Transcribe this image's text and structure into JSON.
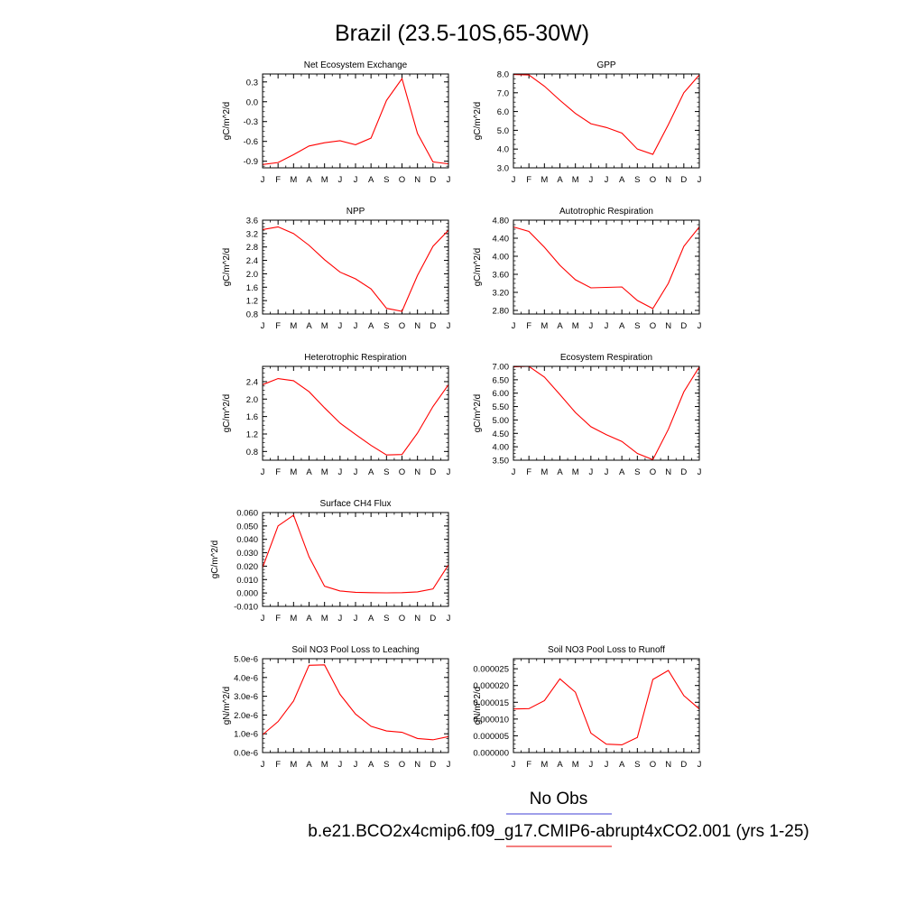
{
  "figure": {
    "title": "Brazil (23.5-10S,65-30W)",
    "legend": {
      "obs_label": "No Obs",
      "obs_color": "#6666dd",
      "case_label": "b.e21.BCO2x4cmip6.f09_g17.CMIP6-abrupt4xCO2.001 (yrs 1-25)",
      "case_color": "#ee3333"
    }
  },
  "chart_data": [
    {
      "type": "line",
      "title": "Net Ecosystem Exchange",
      "ylabel": "gC/m^2/d",
      "categories": [
        "J",
        "F",
        "M",
        "A",
        "M",
        "J",
        "J",
        "A",
        "S",
        "O",
        "N",
        "D",
        "J"
      ],
      "ylim": [
        -1.0,
        0.42
      ],
      "yticks": [
        -0.9,
        -0.6,
        -0.3,
        0.0,
        0.3
      ],
      "ytick_labels": [
        "-0.9",
        "-0.6",
        "-0.3",
        "0.0",
        "0.3"
      ],
      "series": [
        {
          "color": "#ff0000",
          "values": [
            -0.95,
            -0.92,
            -0.8,
            -0.67,
            -0.62,
            -0.59,
            -0.65,
            -0.55,
            0.02,
            0.35,
            -0.48,
            -0.91,
            -0.94
          ]
        }
      ]
    },
    {
      "type": "line",
      "title": "GPP",
      "ylabel": "gC/m^2/d",
      "categories": [
        "J",
        "F",
        "M",
        "A",
        "M",
        "J",
        "J",
        "A",
        "S",
        "O",
        "N",
        "D",
        "J"
      ],
      "ylim": [
        3.0,
        8.0
      ],
      "yticks": [
        3.0,
        4.0,
        5.0,
        6.0,
        7.0,
        8.0
      ],
      "ytick_labels": [
        "3.0",
        "4.0",
        "5.0",
        "6.0",
        "7.0",
        "8.0"
      ],
      "series": [
        {
          "color": "#ff0000",
          "values": [
            7.97,
            7.95,
            7.35,
            6.6,
            5.9,
            5.35,
            5.15,
            4.85,
            4.0,
            3.72,
            5.3,
            7.0,
            7.95
          ]
        }
      ]
    },
    {
      "type": "line",
      "title": "NPP",
      "ylabel": "gC/m^2/d",
      "categories": [
        "J",
        "F",
        "M",
        "A",
        "M",
        "J",
        "J",
        "A",
        "S",
        "O",
        "N",
        "D",
        "J"
      ],
      "ylim": [
        0.8,
        3.6
      ],
      "yticks": [
        0.8,
        1.2,
        1.6,
        2.0,
        2.4,
        2.8,
        3.2,
        3.6
      ],
      "ytick_labels": [
        "0.8",
        "1.2",
        "1.6",
        "2.0",
        "2.4",
        "2.8",
        "3.2",
        "3.6"
      ],
      "series": [
        {
          "color": "#ff0000",
          "values": [
            3.32,
            3.4,
            3.2,
            2.85,
            2.42,
            2.05,
            1.85,
            1.55,
            0.97,
            0.88,
            1.95,
            2.82,
            3.3
          ]
        }
      ]
    },
    {
      "type": "line",
      "title": "Autotrophic Respiration",
      "ylabel": "gC/m^2/d",
      "categories": [
        "J",
        "F",
        "M",
        "A",
        "M",
        "J",
        "J",
        "A",
        "S",
        "O",
        "N",
        "D",
        "J"
      ],
      "ylim": [
        2.72,
        4.8
      ],
      "yticks": [
        2.8,
        3.2,
        3.6,
        4.0,
        4.4,
        4.8
      ],
      "ytick_labels": [
        "2.80",
        "3.20",
        "3.60",
        "4.00",
        "4.40",
        "4.80"
      ],
      "series": [
        {
          "color": "#ff0000",
          "values": [
            4.65,
            4.55,
            4.2,
            3.8,
            3.48,
            3.3,
            3.31,
            3.32,
            3.02,
            2.84,
            3.4,
            4.22,
            4.65
          ]
        }
      ]
    },
    {
      "type": "line",
      "title": "Heterotrophic Respiration",
      "ylabel": "gC/m^2/d",
      "categories": [
        "J",
        "F",
        "M",
        "A",
        "M",
        "J",
        "J",
        "A",
        "S",
        "O",
        "N",
        "D",
        "J"
      ],
      "ylim": [
        0.6,
        2.75
      ],
      "yticks": [
        0.8,
        1.2,
        1.6,
        2.0,
        2.4
      ],
      "ytick_labels": [
        "0.8",
        "1.2",
        "1.6",
        "2.0",
        "2.4"
      ],
      "series": [
        {
          "color": "#ff0000",
          "values": [
            2.33,
            2.47,
            2.42,
            2.17,
            1.8,
            1.45,
            1.19,
            0.94,
            0.72,
            0.73,
            1.22,
            1.83,
            2.33
          ]
        }
      ]
    },
    {
      "type": "line",
      "title": "Ecosystem Respiration",
      "ylabel": "gC/m^2/d",
      "categories": [
        "J",
        "F",
        "M",
        "A",
        "M",
        "J",
        "J",
        "A",
        "S",
        "O",
        "N",
        "D",
        "J"
      ],
      "ylim": [
        3.5,
        7.0
      ],
      "yticks": [
        3.5,
        4.0,
        4.5,
        5.0,
        5.5,
        6.0,
        6.5,
        7.0
      ],
      "ytick_labels": [
        "3.50",
        "4.00",
        "4.50",
        "5.00",
        "5.50",
        "6.00",
        "6.50",
        "7.00"
      ],
      "series": [
        {
          "color": "#ff0000",
          "values": [
            6.98,
            7.0,
            6.6,
            5.95,
            5.28,
            4.75,
            4.45,
            4.2,
            3.75,
            3.52,
            4.65,
            6.05,
            6.98
          ]
        }
      ]
    },
    {
      "type": "line",
      "title": "Surface CH4 Flux",
      "ylabel": "gC/m^2/d",
      "categories": [
        "J",
        "F",
        "M",
        "A",
        "M",
        "J",
        "J",
        "A",
        "S",
        "O",
        "N",
        "D",
        "J"
      ],
      "ylim": [
        -0.01,
        0.06
      ],
      "yticks": [
        -0.01,
        0.0,
        0.01,
        0.02,
        0.03,
        0.04,
        0.05,
        0.06
      ],
      "ytick_labels": [
        "-0.010",
        "0.000",
        "0.010",
        "0.020",
        "0.030",
        "0.040",
        "0.050",
        "0.060"
      ],
      "series": [
        {
          "color": "#ff0000",
          "values": [
            0.019,
            0.05,
            0.058,
            0.027,
            0.005,
            0.0015,
            0.0005,
            0.0002,
            0.0001,
            0.0002,
            0.0008,
            0.003,
            0.021
          ]
        }
      ]
    },
    {
      "type": "line",
      "title": "Soil NO3 Pool Loss to Leaching",
      "ylabel": "gN/m^2/d",
      "categories": [
        "J",
        "F",
        "M",
        "A",
        "M",
        "J",
        "J",
        "A",
        "S",
        "O",
        "N",
        "D",
        "J"
      ],
      "ylim": [
        0.0,
        5e-06
      ],
      "yticks": [
        0.0,
        1e-06,
        2e-06,
        3e-06,
        4e-06,
        5e-06
      ],
      "ytick_labels": [
        "0.0e-6",
        "1.0e-6",
        "2.0e-6",
        "3.0e-6",
        "4.0e-6",
        "5.0e-6"
      ],
      "series": [
        {
          "color": "#ff0000",
          "values": [
            9.5e-07,
            1.65e-06,
            2.75e-06,
            4.65e-06,
            4.67e-06,
            3.1e-06,
            2.05e-06,
            1.4e-06,
            1.15e-06,
            1.08e-06,
            7.5e-07,
            6.8e-07,
            8.5e-07
          ]
        }
      ]
    },
    {
      "type": "line",
      "title": "Soil NO3 Pool Loss to Runoff",
      "ylabel": "gN/m^2/d",
      "categories": [
        "J",
        "F",
        "M",
        "A",
        "M",
        "J",
        "J",
        "A",
        "S",
        "O",
        "N",
        "D",
        "J"
      ],
      "ylim": [
        0.0,
        2.8e-05
      ],
      "yticks": [
        0.0,
        5e-06,
        1e-05,
        1.5e-05,
        2e-05,
        2.5e-05
      ],
      "ytick_labels": [
        "0.000000",
        "0.000005",
        "0.000010",
        "0.000015",
        "0.000020",
        "0.000025"
      ],
      "series": [
        {
          "color": "#ff0000",
          "values": [
            1.3e-05,
            1.31e-05,
            1.55e-05,
            2.2e-05,
            1.8e-05,
            5.8e-06,
            2.5e-06,
            2.3e-06,
            4.5e-06,
            2.18e-05,
            2.45e-05,
            1.7e-05,
            1.3e-05
          ]
        }
      ]
    }
  ]
}
